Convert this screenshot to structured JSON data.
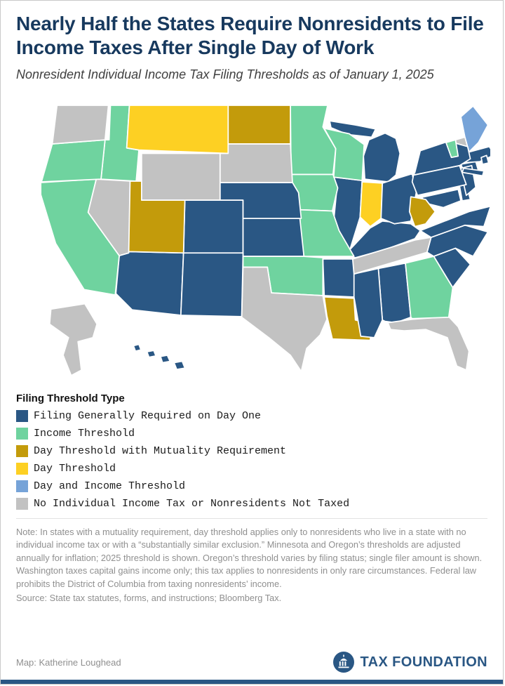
{
  "title": "Nearly Half the States Require Nonresidents to File Income Taxes After Single Day of Work",
  "subtitle": "Nonresident Individual Income Tax Filing Thresholds as of January 1, 2025",
  "legend": {
    "title": "Filing Threshold Type",
    "items": [
      {
        "key": "day_one",
        "label": "Filing Generally Required on Day One",
        "color": "#2a5784"
      },
      {
        "key": "income",
        "label": "Income Threshold",
        "color": "#6fd39f"
      },
      {
        "key": "mutuality",
        "label": "Day Threshold with Mutuality Requirement",
        "color": "#c39b0b"
      },
      {
        "key": "day",
        "label": "Day Threshold",
        "color": "#fdd023"
      },
      {
        "key": "day_income",
        "label": "Day and Income Threshold",
        "color": "#76a3d8"
      },
      {
        "key": "none",
        "label": "No Individual Income Tax or Nonresidents Not Taxed",
        "color": "#c2c2c2"
      }
    ]
  },
  "map": {
    "states": [
      {
        "id": "AL",
        "name": "Alabama",
        "category": "day_one"
      },
      {
        "id": "AK",
        "name": "Alaska",
        "category": "none"
      },
      {
        "id": "AZ",
        "name": "Arizona",
        "category": "day_one"
      },
      {
        "id": "AR",
        "name": "Arkansas",
        "category": "day_one"
      },
      {
        "id": "CA",
        "name": "California",
        "category": "income"
      },
      {
        "id": "CO",
        "name": "Colorado",
        "category": "day_one"
      },
      {
        "id": "CT",
        "name": "Connecticut",
        "category": "day_one"
      },
      {
        "id": "DE",
        "name": "Delaware",
        "category": "day_one"
      },
      {
        "id": "DC",
        "name": "District of Columbia",
        "category": "none"
      },
      {
        "id": "FL",
        "name": "Florida",
        "category": "none"
      },
      {
        "id": "GA",
        "name": "Georgia",
        "category": "income"
      },
      {
        "id": "HI",
        "name": "Hawaii",
        "category": "day_one"
      },
      {
        "id": "ID",
        "name": "Idaho",
        "category": "income"
      },
      {
        "id": "IL",
        "name": "Illinois",
        "category": "day_one"
      },
      {
        "id": "IN",
        "name": "Indiana",
        "category": "day"
      },
      {
        "id": "IA",
        "name": "Iowa",
        "category": "income"
      },
      {
        "id": "KS",
        "name": "Kansas",
        "category": "day_one"
      },
      {
        "id": "KY",
        "name": "Kentucky",
        "category": "day_one"
      },
      {
        "id": "LA",
        "name": "Louisiana",
        "category": "mutuality"
      },
      {
        "id": "ME",
        "name": "Maine",
        "category": "day_income"
      },
      {
        "id": "MD",
        "name": "Maryland",
        "category": "day_one"
      },
      {
        "id": "MA",
        "name": "Massachusetts",
        "category": "day_one"
      },
      {
        "id": "MI",
        "name": "Michigan",
        "category": "day_one"
      },
      {
        "id": "MN",
        "name": "Minnesota",
        "category": "income"
      },
      {
        "id": "MS",
        "name": "Mississippi",
        "category": "day_one"
      },
      {
        "id": "MO",
        "name": "Missouri",
        "category": "income"
      },
      {
        "id": "MT",
        "name": "Montana",
        "category": "day"
      },
      {
        "id": "NE",
        "name": "Nebraska",
        "category": "day_one"
      },
      {
        "id": "NV",
        "name": "Nevada",
        "category": "none"
      },
      {
        "id": "NH",
        "name": "New Hampshire",
        "category": "none"
      },
      {
        "id": "NJ",
        "name": "New Jersey",
        "category": "day_one"
      },
      {
        "id": "NM",
        "name": "New Mexico",
        "category": "day_one"
      },
      {
        "id": "NY",
        "name": "New York",
        "category": "day_one"
      },
      {
        "id": "NC",
        "name": "North Carolina",
        "category": "day_one"
      },
      {
        "id": "ND",
        "name": "North Dakota",
        "category": "mutuality"
      },
      {
        "id": "OH",
        "name": "Ohio",
        "category": "day_one"
      },
      {
        "id": "OK",
        "name": "Oklahoma",
        "category": "income"
      },
      {
        "id": "OR",
        "name": "Oregon",
        "category": "income"
      },
      {
        "id": "PA",
        "name": "Pennsylvania",
        "category": "day_one"
      },
      {
        "id": "RI",
        "name": "Rhode Island",
        "category": "day_one"
      },
      {
        "id": "SC",
        "name": "South Carolina",
        "category": "day_one"
      },
      {
        "id": "SD",
        "name": "South Dakota",
        "category": "none"
      },
      {
        "id": "TN",
        "name": "Tennessee",
        "category": "none"
      },
      {
        "id": "TX",
        "name": "Texas",
        "category": "none"
      },
      {
        "id": "UT",
        "name": "Utah",
        "category": "mutuality"
      },
      {
        "id": "VT",
        "name": "Vermont",
        "category": "income"
      },
      {
        "id": "VA",
        "name": "Virginia",
        "category": "day_one"
      },
      {
        "id": "WA",
        "name": "Washington",
        "category": "none"
      },
      {
        "id": "WV",
        "name": "West Virginia",
        "category": "mutuality"
      },
      {
        "id": "WI",
        "name": "Wisconsin",
        "category": "income"
      },
      {
        "id": "WY",
        "name": "Wyoming",
        "category": "none"
      }
    ]
  },
  "notes": "Note: In states with a mutuality requirement, day threshold applies only to nonresidents who live in a state with no individual income tax or with a “substantially similar exclusion.” Minnesota and Oregon’s thresholds are adjusted annually for inflation; 2025 threshold is shown. Oregon’s threshold varies by filing status; single filer amount is shown. Washington taxes capital gains income only; this tax applies to nonresidents in only rare circumstances. Federal law prohibits the District of Columbia from taxing nonresidents’ income.",
  "source": "Source: State tax statutes, forms, and instructions; Bloomberg Tax.",
  "credit": "Map: Katherine Loughead",
  "brand": "TAX FOUNDATION"
}
